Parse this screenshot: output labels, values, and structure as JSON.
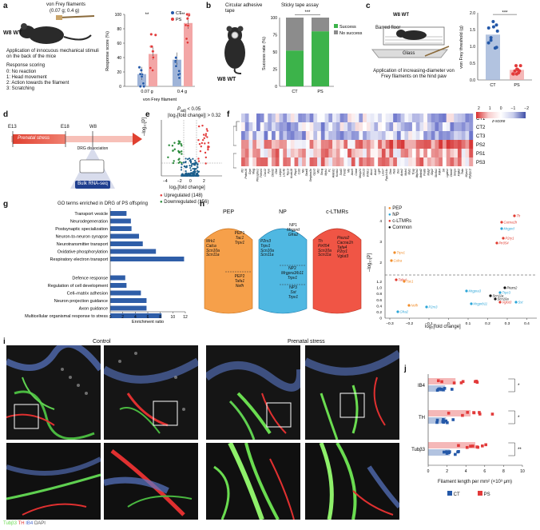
{
  "panels": {
    "a": {
      "letter": "a",
      "filament_title": "von Frey filaments",
      "filament_range": "(0.07 g; 0.4 g)",
      "mouse_label": "W8 WT",
      "description": "Application of innocuous mechanical stimuli on the back of the mice",
      "scoring_title": "Response scoring",
      "scoring": [
        "0: No reaction",
        "1: Head movement",
        "2: Action towards the filament",
        "3: Scratching"
      ],
      "sig": [
        "**",
        "***"
      ],
      "legend": [
        "CT",
        "PS"
      ],
      "xlabel": "von Frey filament"
    },
    "b": {
      "letter": "b",
      "tape_title": "Circular adhesive tape",
      "mouse_label": "W8 WT",
      "assay_title": "Sticky tape assay",
      "sig": "***",
      "legend": [
        "Success",
        "No success"
      ]
    },
    "c": {
      "letter": "c",
      "mouse_label": "W8 WT",
      "floor_label": "Barred floor",
      "glass_label": "Glass",
      "description": "Application of increasing-diameter von Frey filaments on the hind paw",
      "sig": "***"
    },
    "d": {
      "letter": "d",
      "t0": "E13",
      "t1": "E18",
      "t2": "W8",
      "stress": "Prenatal stress",
      "drg": "DRG dissociation",
      "seq": "Bulk RNA-seq"
    },
    "e": {
      "letter": "e",
      "padj": "P",
      "padj_sub": "adj",
      "padj_rest": " < 0.05",
      "fc_thresh": "|log₂[fold change]| > 0.32",
      "ylabel": "–log₁₀[P]",
      "xlabel": "log₂[fold change]",
      "up": "Upregulated (148)",
      "down": "Downregulated (156)",
      "xticks": [
        "−4",
        "−2",
        "0",
        "2"
      ]
    },
    "f": {
      "letter": "f",
      "zscore_label": "z-score",
      "zscore_ticks": [
        "2",
        "1",
        "0",
        "−1",
        "−2"
      ],
      "rows": [
        "CT1",
        "CT2",
        "CT3",
        "PS2",
        "PS1",
        "PS3"
      ],
      "genes": [
        "Ifi1",
        "Prdm16",
        "Grpr",
        "Mag",
        "Phospho1",
        "Tnfrsf4",
        "Car12",
        "Pyn",
        "Ckmt2",
        "Ghrl",
        "Lhfpl4",
        "Lrrc4b",
        "Trpc3",
        "Kcnk18",
        "Rbp4",
        "Cst3",
        "Nts",
        "Stra6l",
        "Serpina3n",
        "Gpx3",
        "Mt1",
        "Sncg",
        "Myh1",
        "Pc",
        "Ankrd1",
        "Kcnb1",
        "Sod3",
        "Tnnt2",
        "Mb",
        "Ano5",
        "Cnbd",
        "Mmp24",
        "Gm13",
        "Wfdc1",
        "Aox1",
        "Asb2",
        "Lgi4",
        "Lmo7",
        "Ppp1r14c",
        "Ckm",
        "Neb",
        "Des",
        "Actn2",
        "Myh4",
        "Myl1",
        "Tcap",
        "Atp2a1",
        "Ankrd2",
        "Pvalb",
        "Mylpf",
        "Xirp2",
        "Slc6a1",
        "Pdk4",
        "Srl",
        "Lgals1",
        "Ckmt2",
        "Smpx",
        "Mylk2",
        "Trdn",
        "Myoz1",
        "Mybpc2"
      ]
    },
    "g": {
      "letter": "g",
      "title": "GO terms enriched in DRG of PS offspring",
      "xlabel": "Enrichment ratio",
      "cc_terms": [
        "Transport vesicle",
        "Neurodegeneration",
        "Postsynaptic specialization",
        "Neuron-to-neuron synapse",
        "Neurotransmitter transport",
        "Oxidative phosphorylation",
        "Respiratory electron transport"
      ],
      "bp_terms": [
        "Defence response",
        "Regulation of cell development",
        "Cell–matrix adhesion",
        "Neuron projection guidance",
        "Axon guidance",
        "Multicellular organismal response to stress"
      ],
      "xticks": [
        "0",
        "2",
        "4",
        "6",
        "8",
        "10",
        "12"
      ]
    },
    "h": {
      "letter": "h",
      "groups": [
        {
          "name": "PEP",
          "sub1": "PEP1",
          "genes1": [
            "Tac1",
            "Trpv1"
          ],
          "left": [
            "Mrk1",
            "Calca",
            "Scn10a",
            "Scn11a"
          ],
          "sub2": "PEP2",
          "genes2": [
            "Tafa1",
            "Nefh"
          ]
        },
        {
          "name": "NP",
          "sub1": "NP1",
          "genes1": [
            "Mrgprd",
            "Gfra2"
          ],
          "left": [
            "P2rx3",
            "Trpv1",
            "Scn10a",
            "Scn11a"
          ],
          "sub2": "NP2",
          "genes2": [
            "Mrgpra3/b11",
            "Trpv1"
          ],
          "sub3": "NP3",
          "genes3": [
            "Sst",
            "Trpv1"
          ]
        },
        {
          "name": "c-LTMRs",
          "genes": [
            "Th",
            "Piezo2",
            "Pir054",
            "Cacna1h",
            "Scn10a",
            "Tafa4",
            "Scn11a",
            "P2ry1",
            "Vglut3"
          ]
        }
      ],
      "legend": [
        "PEP",
        "NP",
        "c-LTMRs",
        "Common"
      ],
      "ylabel": "–log₁₀[P]",
      "xlabel": "log₂[fold change]",
      "xticks": [
        "−0.3",
        "−0.2",
        "−0.1",
        "0",
        "0.1",
        "0.2",
        "0.3",
        "0.4"
      ],
      "yticks_top": [
        "4",
        "3",
        "2"
      ],
      "yticks_bot": [
        "1.2",
        "1.0",
        "0.8",
        "0.6",
        "0.4",
        "0.2",
        "0"
      ],
      "points": [
        {
          "label": "Th",
          "color": "#e03a2f"
        },
        {
          "label": "Cacna1h",
          "color": "#e03a2f"
        },
        {
          "label": "Mrgprd",
          "color": "#2aa5d8"
        },
        {
          "label": "P2ry1",
          "color": "#e03a2f"
        },
        {
          "label": "Pir054",
          "color": "#e03a2f"
        },
        {
          "label": "Trpv1",
          "color": "#f28c28"
        },
        {
          "label": "Calca",
          "color": "#f28c28"
        },
        {
          "label": "Tafa4",
          "color": "#e03a2f"
        },
        {
          "label": "Tac1",
          "color": "#f28c28"
        },
        {
          "label": "Piezo2",
          "color": "#111111"
        },
        {
          "label": "Mrgpra3",
          "color": "#2aa5d8"
        },
        {
          "label": "Trpc3",
          "color": "#2aa5d8"
        },
        {
          "label": "Scn11a",
          "color": "#111111"
        },
        {
          "label": "Scn10a",
          "color": "#111111"
        },
        {
          "label": "Vglut3",
          "color": "#e03a2f"
        },
        {
          "label": "Sst",
          "color": "#2aa5d8"
        },
        {
          "label": "Mrgprb11",
          "color": "#2aa5d8"
        },
        {
          "label": "Nefh",
          "color": "#f28c28"
        },
        {
          "label": "P2rx3",
          "color": "#2aa5d8"
        },
        {
          "label": "Gfra2",
          "color": "#2aa5d8"
        }
      ]
    },
    "i": {
      "letter": "i",
      "ct_label": "Control",
      "ps_label": "Prenatal stress",
      "stain": [
        "Tubβ3",
        "TH",
        "IB4",
        "DAPI"
      ]
    },
    "j": {
      "letter": "j",
      "groups": [
        "IB4",
        "TH",
        "Tubβ3"
      ],
      "xlabel": "Filament length per mm² (×10³ μm)",
      "xticks": [
        "0",
        "2",
        "4",
        "6",
        "8",
        "10"
      ],
      "sig": [
        "*",
        "*",
        "**"
      ],
      "legend": [
        "CT",
        "PS"
      ]
    }
  },
  "colors": {
    "ct": "#2458a8",
    "ps": "#e23a3a",
    "ps_bar": "#f3a6a6",
    "ct_bar": "#9fb4d8",
    "success": "#3cb34a",
    "nosuccess": "#8c8c8c",
    "pep": "#f28c28",
    "np": "#2aa5d8",
    "cltmr": "#e03a2f",
    "common": "#111111"
  },
  "chart_data": [
    {
      "type": "bar",
      "panel": "a",
      "categories": [
        "0.07 g",
        "0.4 g"
      ],
      "series": [
        {
          "name": "CT",
          "values": [
            17,
            37
          ]
        },
        {
          "name": "PS",
          "values": [
            45,
            88
          ]
        }
      ],
      "ylabel": "Response score (%)",
      "xlabel": "von Frey filament",
      "ylim": [
        0,
        100
      ]
    },
    {
      "type": "bar",
      "panel": "b",
      "stacked": true,
      "categories": [
        "CT",
        "PS"
      ],
      "series": [
        {
          "name": "Success",
          "values": [
            52,
            80
          ]
        },
        {
          "name": "No success",
          "values": [
            48,
            20
          ]
        }
      ],
      "ylabel": "Success rate (%)",
      "ylim": [
        0,
        100
      ]
    },
    {
      "type": "bar",
      "panel": "c",
      "categories": [
        "CT",
        "PS"
      ],
      "values": [
        1.35,
        0.3
      ],
      "ylabel": "von Frey threshold (g)",
      "ylim": [
        0,
        2.0
      ]
    },
    {
      "type": "bar",
      "panel": "g",
      "orientation": "horizontal",
      "categories": [
        "Transport vesicle",
        "Neurodegeneration",
        "Postsynaptic specialization",
        "Neuron-to-neuron synapse",
        "Neurotransmitter transport",
        "Oxidative phosphorylation",
        "Respiratory electron transport",
        "Defence response",
        "Regulation of cell development",
        "Cell–matrix adhesion",
        "Neuron projection guidance",
        "Axon guidance",
        "Multicellular organismal response to stress"
      ],
      "values": [
        2.6,
        3.3,
        3.4,
        4.6,
        5.2,
        7.3,
        11.8,
        2.4,
        2.6,
        4.9,
        5.8,
        5.8,
        8.2
      ],
      "xlabel": "Enrichment ratio",
      "xlim": [
        0,
        12
      ]
    },
    {
      "type": "bar",
      "panel": "j",
      "orientation": "horizontal",
      "categories": [
        "IB4",
        "TH",
        "Tubβ3"
      ],
      "series": [
        {
          "name": "CT",
          "values": [
            1.8,
            1.9,
            2.3
          ]
        },
        {
          "name": "PS",
          "values": [
            2.9,
            4.5,
            5.0
          ]
        }
      ],
      "xlabel": "Filament length per mm² (×10³ μm)",
      "xlim": [
        0,
        10
      ]
    }
  ]
}
